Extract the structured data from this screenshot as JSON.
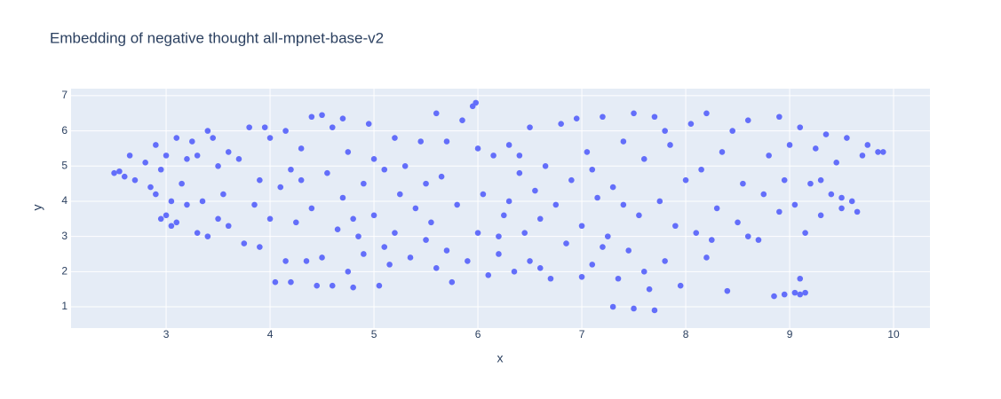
{
  "chart_data": {
    "type": "scatter",
    "title": "Embedding of negative thought all-mpnet-base-v2",
    "x_label": "x",
    "y_label": "y",
    "color": "#636efa",
    "grid": true,
    "xlim": [
      2.085,
      10.35
    ],
    "ylim": [
      0.395,
      7.2
    ],
    "xticks": [
      3,
      4,
      5,
      6,
      7,
      8,
      9,
      10
    ],
    "yticks": [
      1,
      2,
      3,
      4,
      5,
      6,
      7
    ],
    "x": [
      2.5,
      2.55,
      2.6,
      2.65,
      2.7,
      2.8,
      2.85,
      2.9,
      2.95,
      3.0,
      2.95,
      3.0,
      3.05,
      3.1,
      3.1,
      3.15,
      3.2,
      3.25,
      3.3,
      3.3,
      3.35,
      3.4,
      3.4,
      3.45,
      3.5,
      3.5,
      3.55,
      3.6,
      3.6,
      3.7,
      3.75,
      3.8,
      3.85,
      3.9,
      3.9,
      3.95,
      4.0,
      3.2,
      3.05,
      2.9,
      4.05,
      4.1,
      4.15,
      4.2,
      4.2,
      4.25,
      4.3,
      4.35,
      4.4,
      4.45,
      4.5,
      4.5,
      4.55,
      4.6,
      4.6,
      4.65,
      4.7,
      4.7,
      4.75,
      4.8,
      4.85,
      4.9,
      4.9,
      4.95,
      5.0,
      5.0,
      4.4,
      4.3,
      4.15,
      4.0,
      4.8,
      4.75,
      5.05,
      5.1,
      5.15,
      5.2,
      5.25,
      5.3,
      5.35,
      5.4,
      5.45,
      5.5,
      5.55,
      5.6,
      5.6,
      5.65,
      5.7,
      5.75,
      5.8,
      5.85,
      5.9,
      5.95,
      5.98,
      6.0,
      6.0,
      5.5,
      5.2,
      5.1,
      5.7,
      6.05,
      6.1,
      6.15,
      6.2,
      6.25,
      6.3,
      6.35,
      6.4,
      6.45,
      6.5,
      6.5,
      6.55,
      6.6,
      6.65,
      6.7,
      6.75,
      6.8,
      6.85,
      6.9,
      6.95,
      7.0,
      7.0,
      6.2,
      6.4,
      6.6,
      6.3,
      7.05,
      7.1,
      7.15,
      7.2,
      7.25,
      7.3,
      7.3,
      7.35,
      7.4,
      7.45,
      7.5,
      7.5,
      7.55,
      7.6,
      7.65,
      7.7,
      7.7,
      7.75,
      7.8,
      7.85,
      7.9,
      7.95,
      8.0,
      7.4,
      7.2,
      7.6,
      7.8,
      7.1,
      8.05,
      8.1,
      8.15,
      8.2,
      8.25,
      8.3,
      8.35,
      8.4,
      8.45,
      8.5,
      8.55,
      8.6,
      8.7,
      8.75,
      8.8,
      8.85,
      8.9,
      8.9,
      8.95,
      8.95,
      9.0,
      9.05,
      9.05,
      9.1,
      9.1,
      9.15,
      9.15,
      8.2,
      8.6,
      9.2,
      9.25,
      9.3,
      9.35,
      9.4,
      9.45,
      9.5,
      9.55,
      9.6,
      9.65,
      9.7,
      9.75,
      9.85,
      9.9,
      9.1,
      9.3,
      9.5
    ],
    "y": [
      4.8,
      4.85,
      4.7,
      5.3,
      4.6,
      5.1,
      4.4,
      5.6,
      4.9,
      5.3,
      3.5,
      3.6,
      3.3,
      3.4,
      5.8,
      4.5,
      3.9,
      5.7,
      3.1,
      5.3,
      4.0,
      6.0,
      3.0,
      5.8,
      3.5,
      5.0,
      4.2,
      3.3,
      5.4,
      5.2,
      2.8,
      6.1,
      3.9,
      2.7,
      4.6,
      6.1,
      3.5,
      5.2,
      4.0,
      4.2,
      1.7,
      4.4,
      2.3,
      1.7,
      4.9,
      3.4,
      5.5,
      2.3,
      6.4,
      1.6,
      6.45,
      2.4,
      4.8,
      6.1,
      1.6,
      3.2,
      6.35,
      4.1,
      5.4,
      1.55,
      3.0,
      2.5,
      4.5,
      6.2,
      5.2,
      3.6,
      3.8,
      4.6,
      6.0,
      5.8,
      3.5,
      2.0,
      1.6,
      4.9,
      2.2,
      3.1,
      4.2,
      5.0,
      2.4,
      3.8,
      5.7,
      2.9,
      3.4,
      6.5,
      2.1,
      4.7,
      5.7,
      1.7,
      3.9,
      6.3,
      2.3,
      6.7,
      6.8,
      5.5,
      3.1,
      4.5,
      5.8,
      2.7,
      2.6,
      4.2,
      1.9,
      5.3,
      2.5,
      3.6,
      5.6,
      2.0,
      4.8,
      3.1,
      6.1,
      2.3,
      4.3,
      3.5,
      5.0,
      1.8,
      3.9,
      6.2,
      2.8,
      4.6,
      6.35,
      3.3,
      1.85,
      3.0,
      5.3,
      2.1,
      4.0,
      5.4,
      2.2,
      4.1,
      6.4,
      3.0,
      1.0,
      4.4,
      1.8,
      5.7,
      2.6,
      6.5,
      0.95,
      3.6,
      5.2,
      1.5,
      0.9,
      6.4,
      4.0,
      2.3,
      5.6,
      3.3,
      1.6,
      4.6,
      3.9,
      2.7,
      2.0,
      6.0,
      4.9,
      6.2,
      3.1,
      4.9,
      6.5,
      2.9,
      3.8,
      5.4,
      1.45,
      6.0,
      3.4,
      4.5,
      6.3,
      2.9,
      4.2,
      5.3,
      1.3,
      3.7,
      6.4,
      4.6,
      1.35,
      5.6,
      1.4,
      3.9,
      1.35,
      6.1,
      1.4,
      3.1,
      2.4,
      3.0,
      4.5,
      5.5,
      3.6,
      5.9,
      4.2,
      5.1,
      3.8,
      5.8,
      4.0,
      3.7,
      5.3,
      5.6,
      5.4,
      5.4,
      1.8,
      4.6,
      4.1
    ]
  }
}
